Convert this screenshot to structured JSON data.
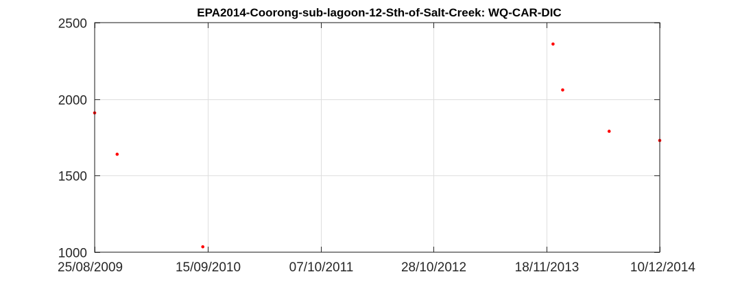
{
  "chart_data": {
    "type": "scatter",
    "title": "EPA2014-Coorong-sub-lagoon-12-Sth-of-Salt-Creek: WQ-CAR-DIC",
    "xlabel": "",
    "ylabel": "",
    "x_type": "date",
    "xlim": [
      "2009-08-25",
      "2014-12-10"
    ],
    "ylim": [
      1000,
      2500
    ],
    "x_ticks": [
      "2009-08-25",
      "2010-09-15",
      "2011-10-07",
      "2012-10-28",
      "2013-11-18",
      "2014-12-10"
    ],
    "x_tick_labels": [
      "25/08/2009",
      "15/09/2010",
      "07/10/2011",
      "28/10/2012",
      "18/11/2013",
      "10/12/2014"
    ],
    "y_ticks": [
      1000,
      1500,
      2000,
      2500
    ],
    "y_tick_labels": [
      "1000",
      "1500",
      "2000",
      "2500"
    ],
    "grid": true,
    "marker_color": "#ff0000",
    "points": [
      {
        "x": "2009-08-25",
        "y": 1910
      },
      {
        "x": "2009-11-10",
        "y": 1640
      },
      {
        "x": "2010-08-30",
        "y": 1035
      },
      {
        "x": "2013-12-10",
        "y": 2360
      },
      {
        "x": "2014-01-12",
        "y": 2060
      },
      {
        "x": "2014-06-20",
        "y": 1790
      },
      {
        "x": "2014-12-10",
        "y": 1730
      }
    ]
  }
}
